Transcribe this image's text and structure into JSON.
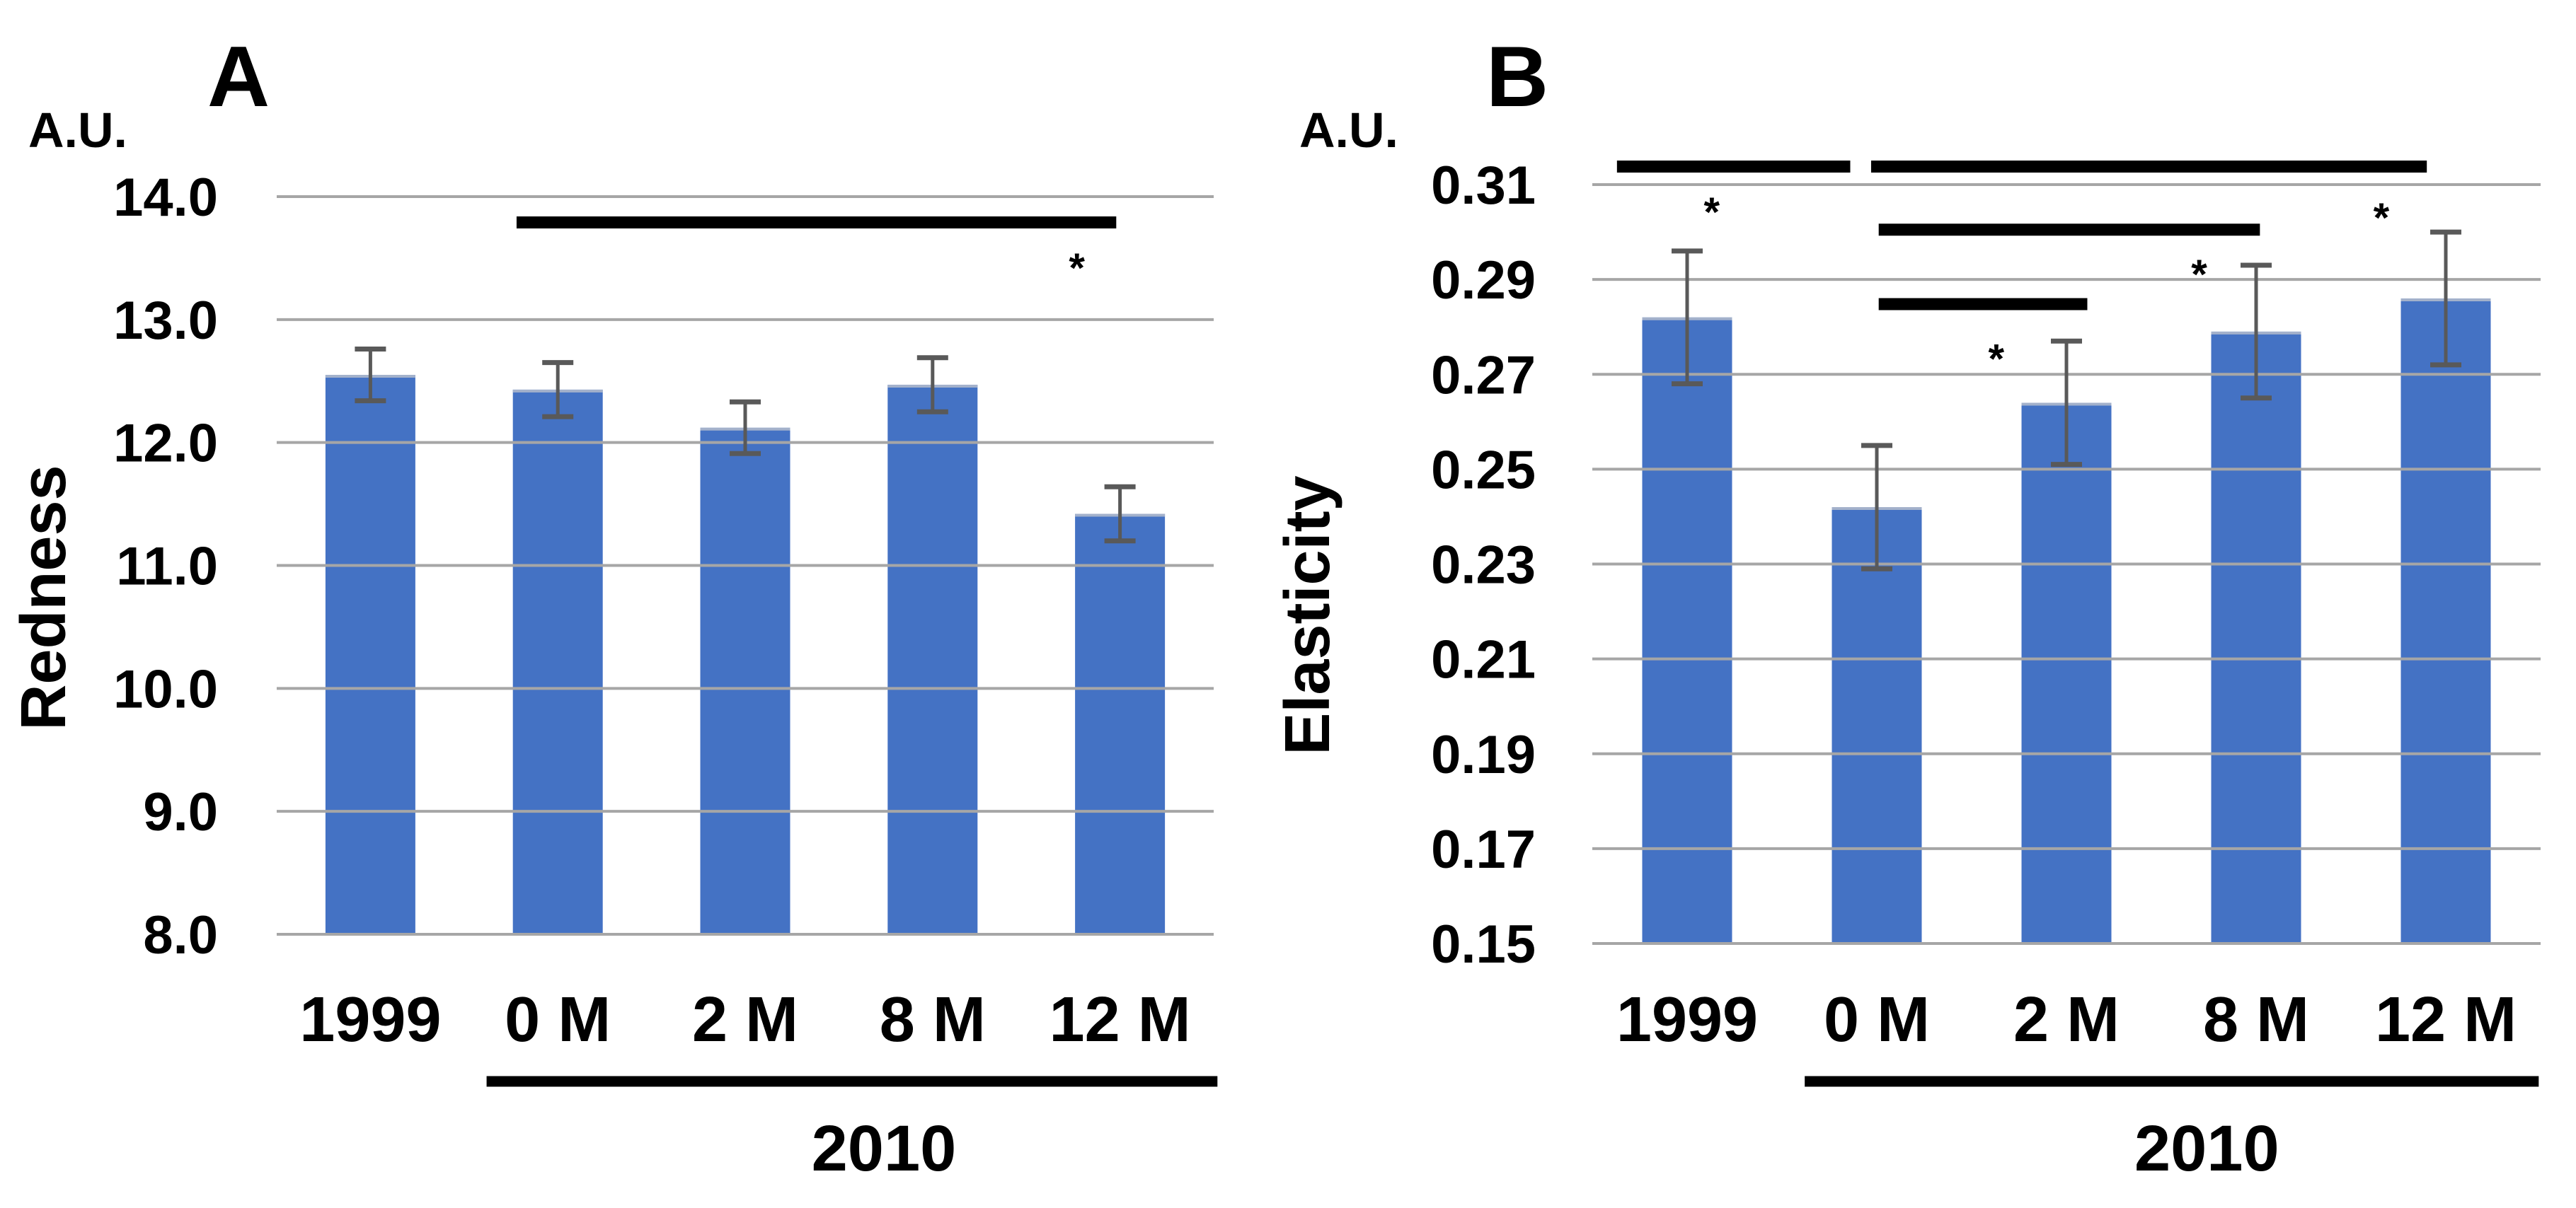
{
  "figure": {
    "background": "#ffffff",
    "bar_color": "#4472C4",
    "bar_top_edge_color": "#AEB8CC",
    "error_bar_color": "#595959",
    "gridline_color": "#A6A6A6",
    "text_color": "#000000",
    "significance_color": "#000000",
    "star_symbol": "*"
  },
  "chart_data": [
    {
      "panel": "A",
      "type": "bar",
      "axis_unit_label": "A.U.",
      "ylabel": "Redness",
      "xlabel": "",
      "categories": [
        "1999",
        "0 M",
        "2 M",
        "8 M",
        "12 M"
      ],
      "values": [
        12.55,
        12.43,
        12.12,
        12.47,
        11.42
      ],
      "errors": [
        0.21,
        0.22,
        0.21,
        0.22,
        0.22
      ],
      "ylim": [
        8.0,
        14.0
      ],
      "ytick_step": 1.0,
      "ytick_labels": [
        "14.0",
        "13.0",
        "12.0",
        "11.0",
        "10.0",
        "9.0",
        "8.0"
      ],
      "grid": true,
      "legend": null,
      "group_annotation": {
        "label": "2010",
        "x1_cat": 0.62,
        "x2_cat": 4.52,
        "label_cat": 2.74
      },
      "significance_bars": [
        {
          "compare": [
            "0 M",
            "12 M"
          ],
          "x1_cat": 0.78,
          "x2_cat": 3.98,
          "y": 13.79,
          "star_cat": 3.77,
          "star_y": 13.47
        }
      ]
    },
    {
      "panel": "B",
      "type": "bar",
      "axis_unit_label": "A.U.",
      "ylabel": "Elasticity",
      "xlabel": "",
      "categories": [
        "1999",
        "0 M",
        "2 M",
        "8 M",
        "12 M"
      ],
      "values": [
        0.282,
        0.242,
        0.264,
        0.279,
        0.286
      ],
      "errors": [
        0.014,
        0.013,
        0.013,
        0.014,
        0.014
      ],
      "ylim": [
        0.15,
        0.31
      ],
      "ytick_step": 0.02,
      "ytick_labels": [
        "0.31",
        "0.29",
        "0.27",
        "0.25",
        "0.23",
        "0.21",
        "0.19",
        "0.17",
        "0.15"
      ],
      "grid": true,
      "legend": null,
      "group_annotation": {
        "label": "2010",
        "x1_cat": 0.62,
        "x2_cat": 4.49,
        "label_cat": 2.74
      },
      "significance_bars": [
        {
          "compare": [
            "1999",
            "0 M"
          ],
          "x1_cat": -0.37,
          "x2_cat": 0.86,
          "y": 0.3138,
          "star_cat": 0.13,
          "star_y": 0.3055
        },
        {
          "compare": [
            "0 M",
            "12 M"
          ],
          "x1_cat": 0.97,
          "x2_cat": 3.9,
          "y": 0.3138,
          "star_cat": 3.66,
          "star_y": 0.3043
        },
        {
          "compare": [
            "0 M",
            "8 M"
          ],
          "x1_cat": 1.01,
          "x2_cat": 3.02,
          "y": 0.3005,
          "star_cat": 2.7,
          "star_y": 0.2924
        },
        {
          "compare": [
            "0 M",
            "2 M"
          ],
          "x1_cat": 1.01,
          "x2_cat": 2.11,
          "y": 0.2848,
          "star_cat": 1.63,
          "star_y": 0.2746
        }
      ]
    }
  ]
}
